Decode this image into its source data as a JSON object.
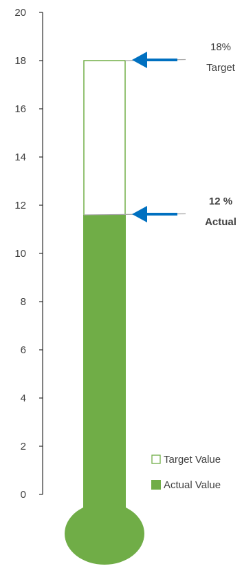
{
  "chart_data": {
    "type": "bar",
    "title": "",
    "xlabel": "",
    "ylabel": "",
    "ylim": [
      0,
      20
    ],
    "yticks": [
      0,
      2,
      4,
      6,
      8,
      10,
      12,
      14,
      16,
      18,
      20
    ],
    "grid": false,
    "legend_position": "bottom-right",
    "series": [
      {
        "name": "Target Value",
        "value": 18,
        "style": "outline",
        "color": "#70ad47"
      },
      {
        "name": "Actual Value",
        "value": 11.6,
        "style": "filled",
        "color": "#70ad47"
      }
    ],
    "annotations": [
      {
        "value": 18,
        "line1": "18%",
        "line2": "Target",
        "bold": false,
        "arrow_color": "#0070c0"
      },
      {
        "value": 11.6,
        "line1": "12 %",
        "line2": "Actual",
        "bold": true,
        "arrow_color": "#0070c0"
      }
    ],
    "colors": {
      "axis": "#000000",
      "text": "#404040",
      "leader": "#a6a6a6"
    }
  }
}
